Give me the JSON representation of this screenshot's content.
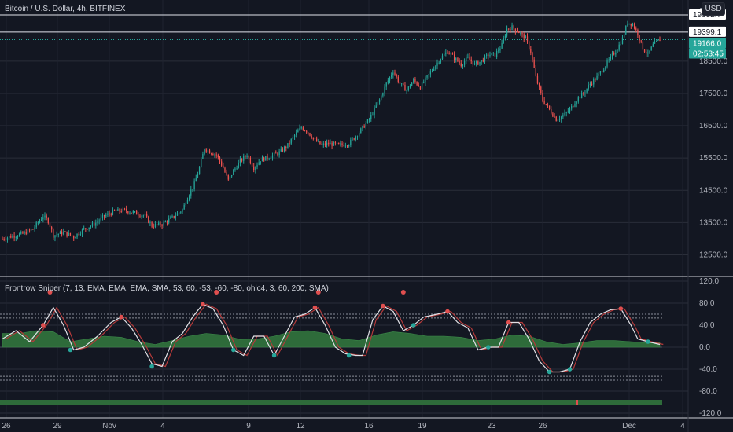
{
  "header": {
    "title": "Bitcoin / U.S. Dollar, 4h, BITFINEX",
    "currency_button": "USD"
  },
  "indicator": {
    "title": "Frontrow Sniper (7, 13, EMA, EMA, EMA, SMA, 53, 60, -53, -60, -80, ohlc4, 3, 60, 200, SMA)"
  },
  "colors": {
    "up": "#26a69a",
    "down": "#ef5350",
    "bg": "#131722",
    "grid": "#2a2e39",
    "osc_line": "#e1e1e6",
    "hist": "#2e6b3a",
    "signal_dot": "#e04f4f"
  },
  "price_axis": {
    "ticks": [
      "12500.0",
      "13500.0",
      "14500.0",
      "15500.0",
      "16500.0",
      "17500.0",
      "18500.0"
    ],
    "top_partial": "20"
  },
  "price_labels": {
    "level_high": "19932.7",
    "level_mid": "19399.1",
    "current": "19166.0",
    "countdown": "02:53:45"
  },
  "osc_axis": {
    "ticks": [
      "120.0",
      "80.0",
      "40.0",
      "0.0",
      "-40.0",
      "-80.0",
      "-120.0"
    ]
  },
  "time_axis": [
    "26",
    "29",
    "Nov",
    "4",
    "9",
    "12",
    "16",
    "19",
    "23",
    "26",
    "Dec",
    "4"
  ],
  "chart_data": [
    {
      "type": "candlestick",
      "title": "Bitcoin / U.S. Dollar, 4h, BITFINEX",
      "x_ticks": [
        "26",
        "29",
        "Nov",
        "4",
        "9",
        "12",
        "16",
        "19",
        "23",
        "26",
        "Dec",
        "4"
      ],
      "y_ticks": [
        12500,
        13500,
        14500,
        15500,
        16500,
        17500,
        18500
      ],
      "ylim": [
        12000,
        20200
      ],
      "horizontal_levels": [
        19932.7,
        19399.1
      ],
      "current_price": 19166.0,
      "close_path": [
        [
          0,
          13000
        ],
        [
          6,
          13080
        ],
        [
          12,
          13150
        ],
        [
          18,
          13300
        ],
        [
          24,
          13700
        ],
        [
          27,
          13550
        ],
        [
          30,
          13100
        ],
        [
          36,
          13200
        ],
        [
          42,
          13050
        ],
        [
          48,
          13300
        ],
        [
          54,
          13450
        ],
        [
          60,
          13700
        ],
        [
          66,
          13850
        ],
        [
          72,
          13880
        ],
        [
          78,
          13800
        ],
        [
          84,
          13700
        ],
        [
          88,
          13400
        ],
        [
          94,
          13450
        ],
        [
          100,
          13650
        ],
        [
          106,
          13900
        ],
        [
          110,
          14400
        ],
        [
          113,
          14700
        ],
        [
          116,
          15200
        ],
        [
          119,
          15800
        ],
        [
          122,
          15700
        ],
        [
          126,
          15600
        ],
        [
          130,
          15200
        ],
        [
          133,
          14800
        ],
        [
          136,
          15100
        ],
        [
          140,
          15400
        ],
        [
          144,
          15600
        ],
        [
          148,
          15200
        ],
        [
          152,
          15450
        ],
        [
          158,
          15550
        ],
        [
          164,
          15700
        ],
        [
          168,
          15900
        ],
        [
          172,
          16200
        ],
        [
          176,
          16450
        ],
        [
          180,
          16300
        ],
        [
          184,
          16050
        ],
        [
          188,
          15900
        ],
        [
          192,
          15950
        ],
        [
          198,
          15900
        ],
        [
          204,
          15950
        ],
        [
          210,
          16300
        ],
        [
          216,
          16700
        ],
        [
          222,
          17300
        ],
        [
          226,
          17800
        ],
        [
          230,
          18200
        ],
        [
          234,
          17800
        ],
        [
          238,
          17600
        ],
        [
          242,
          17900
        ],
        [
          246,
          17700
        ],
        [
          250,
          18000
        ],
        [
          254,
          18300
        ],
        [
          258,
          18600
        ],
        [
          262,
          18800
        ],
        [
          266,
          18600
        ],
        [
          270,
          18400
        ],
        [
          274,
          18600
        ],
        [
          278,
          18400
        ],
        [
          282,
          18500
        ],
        [
          286,
          18700
        ],
        [
          290,
          18700
        ],
        [
          294,
          19000
        ],
        [
          297,
          19500
        ],
        [
          300,
          19550
        ],
        [
          304,
          19400
        ],
        [
          308,
          19200
        ],
        [
          311,
          18800
        ],
        [
          314,
          18000
        ],
        [
          318,
          17300
        ],
        [
          322,
          17000
        ],
        [
          326,
          16700
        ],
        [
          330,
          16800
        ],
        [
          334,
          17000
        ],
        [
          338,
          17300
        ],
        [
          342,
          17500
        ],
        [
          346,
          17800
        ],
        [
          350,
          18000
        ],
        [
          354,
          18300
        ],
        [
          358,
          18600
        ],
        [
          362,
          18900
        ],
        [
          365,
          19200
        ],
        [
          368,
          19700
        ],
        [
          371,
          19650
        ],
        [
          374,
          19350
        ],
        [
          377,
          18900
        ],
        [
          380,
          18700
        ],
        [
          383,
          19000
        ],
        [
          387,
          19166
        ]
      ]
    },
    {
      "type": "line",
      "title": "Frontrow Sniper (7, 13, EMA, EMA, EMA, SMA, 53, 60, -53, -60, -80, ohlc4, 3, 60, 200, SMA)",
      "y_ticks": [
        120,
        80,
        40,
        0,
        -40,
        -80,
        -120
      ],
      "ylim": [
        -125,
        125
      ],
      "dotted_levels": [
        60,
        53,
        -53,
        -60
      ],
      "series": [
        {
          "values": [
            [
              0,
              15
            ],
            [
              8,
              30
            ],
            [
              16,
              10
            ],
            [
              24,
              40
            ],
            [
              30,
              72
            ],
            [
              36,
              40
            ],
            [
              42,
              -5
            ],
            [
              48,
              0
            ],
            [
              56,
              20
            ],
            [
              64,
              45
            ],
            [
              70,
              55
            ],
            [
              76,
              35
            ],
            [
              82,
              5
            ],
            [
              88,
              -30
            ],
            [
              94,
              -35
            ],
            [
              100,
              10
            ],
            [
              106,
              25
            ],
            [
              112,
              55
            ],
            [
              118,
              78
            ],
            [
              124,
              70
            ],
            [
              130,
              40
            ],
            [
              136,
              -5
            ],
            [
              142,
              -15
            ],
            [
              148,
              20
            ],
            [
              154,
              20
            ],
            [
              160,
              -15
            ],
            [
              166,
              20
            ],
            [
              172,
              55
            ],
            [
              178,
              60
            ],
            [
              184,
              72
            ],
            [
              190,
              40
            ],
            [
              196,
              0
            ],
            [
              202,
              -12
            ],
            [
              208,
              -15
            ],
            [
              212,
              -15
            ],
            [
              218,
              50
            ],
            [
              224,
              75
            ],
            [
              230,
              65
            ],
            [
              236,
              30
            ],
            [
              242,
              40
            ],
            [
              248,
              55
            ],
            [
              256,
              60
            ],
            [
              262,
              65
            ],
            [
              268,
              45
            ],
            [
              274,
              35
            ],
            [
              280,
              -5
            ],
            [
              286,
              0
            ],
            [
              292,
              0
            ],
            [
              298,
              45
            ],
            [
              304,
              45
            ],
            [
              310,
              15
            ],
            [
              316,
              -25
            ],
            [
              322,
              -45
            ],
            [
              328,
              -45
            ],
            [
              334,
              -40
            ],
            [
              340,
              10
            ],
            [
              346,
              45
            ],
            [
              352,
              60
            ],
            [
              358,
              68
            ],
            [
              364,
              70
            ],
            [
              370,
              40
            ],
            [
              374,
              15
            ],
            [
              380,
              10
            ],
            [
              387,
              5
            ]
          ]
        },
        {
          "values": [
            [
              0,
              25
            ],
            [
              10,
              25
            ],
            [
              20,
              30
            ],
            [
              30,
              28
            ],
            [
              40,
              10
            ],
            [
              50,
              15
            ],
            [
              60,
              20
            ],
            [
              70,
              18
            ],
            [
              80,
              10
            ],
            [
              90,
              5
            ],
            [
              100,
              12
            ],
            [
              110,
              20
            ],
            [
              120,
              25
            ],
            [
              130,
              22
            ],
            [
              140,
              14
            ],
            [
              150,
              15
            ],
            [
              160,
              20
            ],
            [
              170,
              28
            ],
            [
              180,
              30
            ],
            [
              190,
              25
            ],
            [
              200,
              15
            ],
            [
              210,
              12
            ],
            [
              220,
              22
            ],
            [
              230,
              28
            ],
            [
              240,
              25
            ],
            [
              250,
              20
            ],
            [
              260,
              20
            ],
            [
              270,
              18
            ],
            [
              280,
              12
            ],
            [
              290,
              15
            ],
            [
              300,
              22
            ],
            [
              310,
              20
            ],
            [
              320,
              10
            ],
            [
              330,
              5
            ],
            [
              340,
              8
            ],
            [
              350,
              12
            ],
            [
              360,
              12
            ],
            [
              370,
              10
            ],
            [
              380,
              8
            ],
            [
              387,
              8
            ]
          ]
        }
      ],
      "signals_up": [
        [
          40,
          -5
        ],
        [
          88,
          -35
        ],
        [
          136,
          -5
        ],
        [
          160,
          -15
        ],
        [
          204,
          -15
        ],
        [
          242,
          40
        ],
        [
          286,
          0
        ],
        [
          322,
          -45
        ],
        [
          334,
          -40
        ],
        [
          380,
          10
        ]
      ],
      "signals_down": [
        [
          24,
          40
        ],
        [
          70,
          55
        ],
        [
          118,
          78
        ],
        [
          184,
          72
        ],
        [
          224,
          75
        ],
        [
          262,
          65
        ],
        [
          298,
          45
        ],
        [
          364,
          70
        ]
      ],
      "top_markers": [
        28,
        126,
        186,
        236
      ]
    }
  ]
}
